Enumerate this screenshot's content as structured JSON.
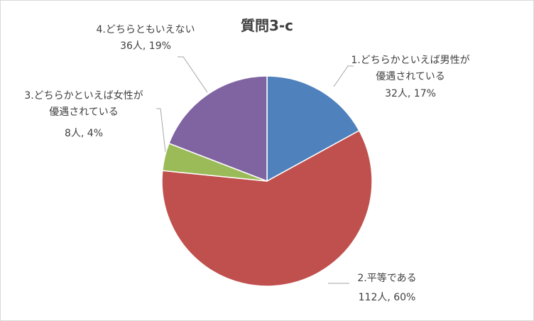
{
  "chart_data": {
    "type": "pie",
    "title": "質問3-c",
    "categories": [
      "1.どちらかといえば男性が\n優遇されている",
      "2.平等である",
      "3.どちらかといえば女性が\n優遇されている",
      "4.どちらともいえない"
    ],
    "values": [
      32,
      112,
      8,
      36
    ],
    "value_labels": [
      "32人, 17%",
      "112人, 60%",
      "8人, 4%",
      "36人, 19%"
    ],
    "colors": [
      "#4f81bd",
      "#c0504d",
      "#9bbb59",
      "#8064a2"
    ]
  }
}
